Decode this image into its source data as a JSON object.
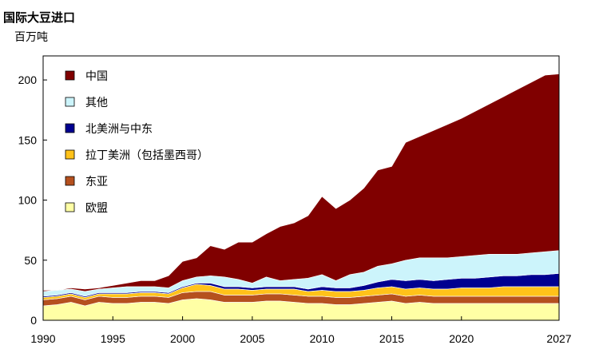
{
  "chart_data": {
    "type": "area",
    "stacked": true,
    "title": "国际大豆进口",
    "subtitle": "百万吨",
    "xlabel": "",
    "ylabel": "",
    "xlim": [
      1990,
      2027
    ],
    "ylim": [
      0,
      220
    ],
    "x_ticks": [
      1990,
      1995,
      2000,
      2005,
      2010,
      2015,
      2020,
      2027
    ],
    "y_ticks": [
      0,
      50,
      100,
      150,
      200
    ],
    "legend_position": "top-left",
    "grid": false,
    "x": [
      1990,
      1991,
      1992,
      1993,
      1994,
      1995,
      1996,
      1997,
      1998,
      1999,
      2000,
      2001,
      2002,
      2003,
      2004,
      2005,
      2006,
      2007,
      2008,
      2009,
      2010,
      2011,
      2012,
      2013,
      2014,
      2015,
      2016,
      2017,
      2018,
      2019,
      2020,
      2021,
      2022,
      2023,
      2024,
      2025,
      2026,
      2027
    ],
    "series": [
      {
        "name": "欧盟",
        "color": "#ffffa5",
        "values": [
          12,
          13,
          15,
          12,
          15,
          14,
          14,
          15,
          15,
          14,
          17,
          18,
          17,
          15,
          15,
          15,
          16,
          16,
          15,
          14,
          14,
          13,
          13,
          14,
          15,
          16,
          14,
          15,
          14,
          14,
          14,
          14,
          14,
          14,
          14,
          14,
          14,
          14
        ]
      },
      {
        "name": "东亚",
        "color": "#b5501e",
        "values": [
          5,
          5,
          5,
          5,
          5,
          5,
          5,
          5,
          5,
          5,
          6,
          6,
          7,
          6,
          6,
          6,
          6,
          6,
          6,
          6,
          6,
          6,
          6,
          6,
          6,
          6,
          6,
          6,
          6,
          6,
          6,
          6,
          6,
          6,
          6,
          6,
          6,
          6
        ]
      },
      {
        "name": "拉丁美洲（包括墨西哥）",
        "color": "#ffc21a",
        "values": [
          2,
          2,
          2,
          2,
          2,
          3,
          3,
          3,
          3,
          3,
          4,
          6,
          5,
          5,
          5,
          4,
          4,
          4,
          5,
          4,
          5,
          5,
          5,
          5,
          6,
          6,
          6,
          6,
          6,
          6,
          7,
          7,
          7,
          8,
          8,
          8,
          8,
          8
        ]
      },
      {
        "name": "北美洲与中东",
        "color": "#000090",
        "values": [
          1,
          1,
          1,
          1,
          1,
          1,
          1,
          1,
          1,
          1,
          1,
          1,
          2,
          2,
          2,
          2,
          2,
          2,
          2,
          2,
          3,
          3,
          3,
          4,
          5,
          6,
          7,
          7,
          7,
          8,
          8,
          8,
          9,
          9,
          9,
          10,
          10,
          11
        ]
      },
      {
        "name": "其他",
        "color": "#ccf4fb",
        "values": [
          4,
          4,
          3,
          4,
          3,
          4,
          5,
          4,
          4,
          4,
          5,
          5,
          6,
          8,
          6,
          4,
          8,
          5,
          6,
          9,
          10,
          6,
          11,
          11,
          13,
          13,
          17,
          18,
          19,
          18,
          18,
          19,
          19,
          18,
          18,
          18,
          19,
          19
        ]
      },
      {
        "name": "中国",
        "color": "#800000",
        "values": [
          1,
          0,
          1,
          2,
          1,
          2,
          3,
          5,
          5,
          10,
          16,
          16,
          25,
          23,
          31,
          34,
          36,
          45,
          47,
          52,
          65,
          60,
          62,
          70,
          80,
          81,
          98,
          101,
          106,
          111,
          115,
          120,
          125,
          131,
          137,
          142,
          147,
          147
        ]
      }
    ]
  }
}
